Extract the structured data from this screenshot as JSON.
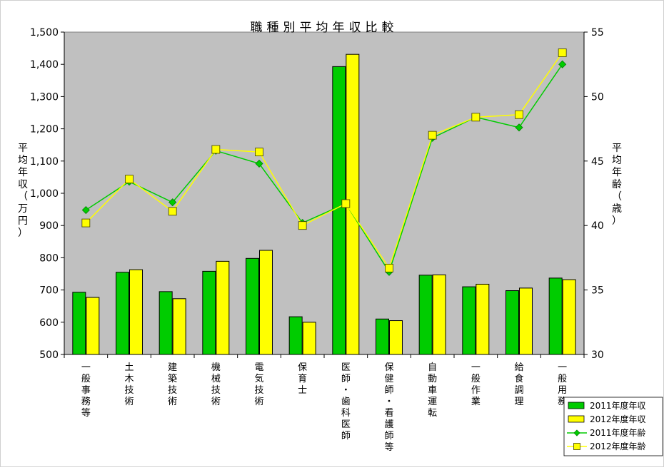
{
  "chart_data": {
    "type": "bar",
    "title": "職種別平均年収比較",
    "categories": [
      "一般事務等",
      "土木技術",
      "建築技術",
      "機械技術",
      "電気技術",
      "保育士",
      "医師・歯科医師",
      "保健師・看護師等",
      "自動車運転",
      "一般作業",
      "給食調理",
      "一般用務"
    ],
    "series": [
      {
        "name": "2011年度年収",
        "type": "bar",
        "axis": "left",
        "color": "#00cc00",
        "values": [
          693,
          755,
          695,
          758,
          798,
          617,
          1393,
          610,
          746,
          710,
          698,
          737
        ]
      },
      {
        "name": "2012年度年収",
        "type": "bar",
        "axis": "left",
        "color": "#ffff00",
        "values": [
          677,
          763,
          673,
          789,
          823,
          600,
          1431,
          605,
          747,
          718,
          706,
          732
        ]
      },
      {
        "name": "2011年度年齢",
        "type": "line",
        "axis": "right",
        "color": "#00cc00",
        "marker": "diamond",
        "values": [
          41.2,
          43.4,
          41.8,
          45.8,
          44.8,
          40.2,
          41.7,
          36.4,
          46.8,
          48.4,
          47.6,
          52.5
        ]
      },
      {
        "name": "2012年度年齢",
        "type": "line",
        "axis": "right",
        "color": "#ffff00",
        "marker": "square",
        "values": [
          40.2,
          43.6,
          41.1,
          45.9,
          45.7,
          40.0,
          41.7,
          36.7,
          47.0,
          48.4,
          48.6,
          53.4
        ]
      }
    ],
    "ylabel_left": "平均年収（万円）",
    "ylabel_right": "平均年齢（歳）",
    "ylim_left": [
      500,
      1500
    ],
    "yticks_left": [
      "500",
      "600",
      "700",
      "800",
      "900",
      "1,000",
      "1,100",
      "1,200",
      "1,300",
      "1,400",
      "1,500"
    ],
    "ylim_right": [
      30,
      55
    ],
    "yticks_right": [
      "30",
      "35",
      "40",
      "45",
      "50",
      "55"
    ],
    "plot_background": "#c0c0c0",
    "grid": false,
    "legend_position": "bottom-right"
  }
}
